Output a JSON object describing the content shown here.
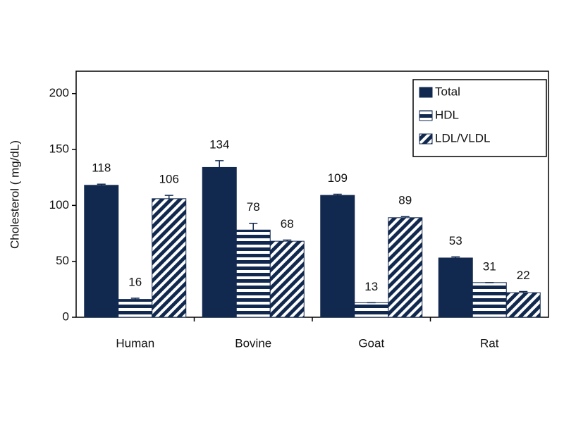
{
  "chart_data": {
    "type": "bar",
    "y_label": "Cholesterol ( mg/dL)",
    "categories": [
      "Human",
      "Bovine",
      "Goat",
      "Rat"
    ],
    "series": [
      {
        "name": "Total",
        "color": "#12294f",
        "pattern": "solid",
        "values": [
          118,
          134,
          109,
          53
        ],
        "errors": [
          1,
          6,
          1,
          1
        ]
      },
      {
        "name": "HDL",
        "color": "#12294f",
        "pattern": "horizontal",
        "values": [
          16,
          78,
          13,
          31
        ],
        "errors": [
          1,
          6,
          0,
          0
        ]
      },
      {
        "name": "LDL/VLDL",
        "color": "#12294f",
        "pattern": "diagonal",
        "values": [
          106,
          68,
          89,
          22
        ],
        "errors": [
          3,
          1,
          1,
          1
        ]
      }
    ],
    "ylim": [
      0,
      220
    ],
    "yticks": [
      0,
      50,
      100,
      150,
      200
    ],
    "legend": "upper right"
  }
}
